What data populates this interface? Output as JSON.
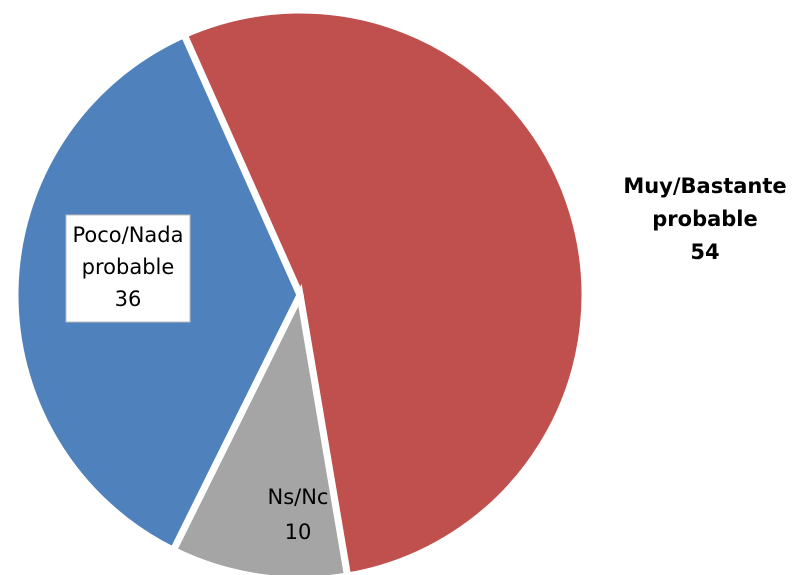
{
  "chart_data": {
    "type": "pie",
    "categories": [
      "Muy/Bastante probable",
      "Ns/Nc",
      "Poco/Nada probable"
    ],
    "values": [
      54,
      10,
      36
    ],
    "colors": [
      "#C0504D",
      "#A5A5A5",
      "#4F81BD"
    ]
  }
}
